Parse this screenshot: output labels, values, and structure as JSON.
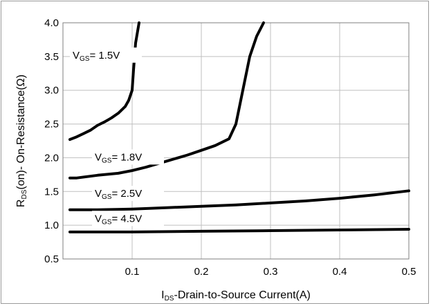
{
  "chart_data": {
    "type": "line",
    "xlabel_prefix": "I",
    "xlabel_sub": "DS",
    "xlabel_rest": "-Drain-to-Source  Current(A)",
    "ylabel_prefix": "R",
    "ylabel_sub": "DS",
    "ylabel_rest": "(on)- On-Resistance(Ω)",
    "xlim": [
      0,
      0.5
    ],
    "ylim": [
      0.5,
      4.0
    ],
    "x_ticks": [
      "0.1",
      "0.2",
      "0.3",
      "0.4",
      "0.5"
    ],
    "y_ticks": [
      "0.5",
      "1.0",
      "1.5",
      "2.0",
      "2.5",
      "3.0",
      "3.5",
      "4.0"
    ],
    "grid": true,
    "series": [
      {
        "label_main": "V",
        "label_sub": "GS",
        "label_val": "= 1.5V",
        "x": [
          0.01,
          0.02,
          0.03,
          0.04,
          0.05,
          0.06,
          0.07,
          0.08,
          0.09,
          0.095,
          0.1,
          0.102,
          0.105,
          0.11
        ],
        "y": [
          2.27,
          2.31,
          2.36,
          2.41,
          2.48,
          2.53,
          2.59,
          2.66,
          2.76,
          2.85,
          3.0,
          3.3,
          3.7,
          4.0
        ]
      },
      {
        "label_main": "V",
        "label_sub": "GS",
        "label_val": "= 1.8V",
        "x": [
          0.01,
          0.02,
          0.05,
          0.08,
          0.1,
          0.12,
          0.15,
          0.18,
          0.2,
          0.22,
          0.24,
          0.25,
          0.26,
          0.27,
          0.28,
          0.29
        ],
        "y": [
          1.7,
          1.7,
          1.74,
          1.77,
          1.81,
          1.86,
          1.95,
          2.04,
          2.11,
          2.18,
          2.28,
          2.5,
          3.0,
          3.5,
          3.8,
          4.0
        ]
      },
      {
        "label_main": "V",
        "label_sub": "GS",
        "label_val": "= 2.5V",
        "x": [
          0.01,
          0.05,
          0.1,
          0.15,
          0.2,
          0.25,
          0.3,
          0.35,
          0.4,
          0.45,
          0.5
        ],
        "y": [
          1.23,
          1.23,
          1.24,
          1.26,
          1.28,
          1.3,
          1.33,
          1.36,
          1.4,
          1.45,
          1.51
        ]
      },
      {
        "label_main": "V",
        "label_sub": "GS",
        "label_val": "= 4.5V",
        "x": [
          0.01,
          0.1,
          0.2,
          0.3,
          0.4,
          0.5
        ],
        "y": [
          0.9,
          0.9,
          0.91,
          0.92,
          0.93,
          0.94
        ]
      }
    ]
  }
}
